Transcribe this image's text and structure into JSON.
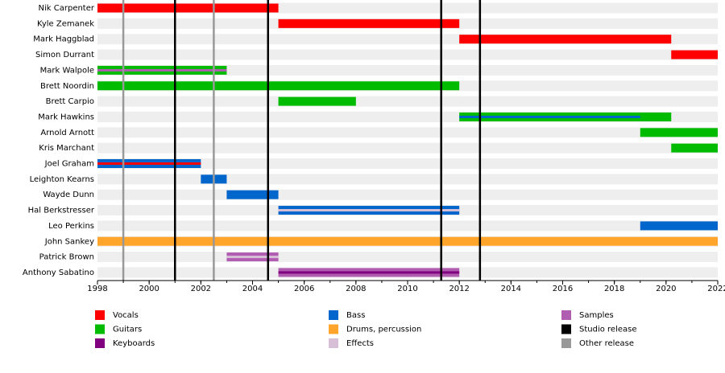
{
  "chart_data": {
    "type": "timeline",
    "rows": [
      {
        "name": "Nik Carpenter",
        "bars": [
          {
            "role": "Vocals",
            "start": 1998,
            "end": 2005
          }
        ],
        "stripes": []
      },
      {
        "name": "Kyle Zemanek",
        "bars": [
          {
            "role": "Vocals",
            "start": 2005,
            "end": 2012
          }
        ],
        "stripes": []
      },
      {
        "name": "Mark Haggblad",
        "bars": [
          {
            "role": "Vocals",
            "start": 2012,
            "end": 2020.2
          }
        ],
        "stripes": []
      },
      {
        "name": "Simon Durrant",
        "bars": [
          {
            "role": "Vocals",
            "start": 2020.2,
            "end": 2022
          }
        ],
        "stripes": []
      },
      {
        "name": "Mark Walpole",
        "bars": [
          {
            "role": "Guitars",
            "start": 1998,
            "end": 2003
          }
        ],
        "stripes": [
          {
            "role": "Samples",
            "start": 1998,
            "end": 2003
          }
        ]
      },
      {
        "name": "Brett Noordin",
        "bars": [
          {
            "role": "Guitars",
            "start": 1998,
            "end": 2012
          }
        ],
        "stripes": []
      },
      {
        "name": "Brett Carpio",
        "bars": [
          {
            "role": "Guitars",
            "start": 2005,
            "end": 2008
          }
        ],
        "stripes": []
      },
      {
        "name": "Mark Hawkins",
        "bars": [
          {
            "role": "Guitars",
            "start": 2012,
            "end": 2020.2
          }
        ],
        "stripes": [
          {
            "role": "Bass",
            "start": 2012,
            "end": 2019
          }
        ]
      },
      {
        "name": "Arnold Arnott",
        "bars": [
          {
            "role": "Guitars",
            "start": 2019,
            "end": 2022
          }
        ],
        "stripes": []
      },
      {
        "name": "Kris Marchant",
        "bars": [
          {
            "role": "Guitars",
            "start": 2020.2,
            "end": 2022
          }
        ],
        "stripes": []
      },
      {
        "name": "Joel Graham",
        "bars": [
          {
            "role": "Bass",
            "start": 1998,
            "end": 2002
          }
        ],
        "stripes": [
          {
            "role": "Vocals",
            "start": 1998,
            "end": 2002
          }
        ]
      },
      {
        "name": "Leighton Kearns",
        "bars": [
          {
            "role": "Bass",
            "start": 2002,
            "end": 2003
          }
        ],
        "stripes": []
      },
      {
        "name": "Wayde Dunn",
        "bars": [
          {
            "role": "Bass",
            "start": 2003,
            "end": 2005
          }
        ],
        "stripes": []
      },
      {
        "name": "Hal Berkstresser",
        "bars": [
          {
            "role": "Bass",
            "start": 2005,
            "end": 2012
          }
        ],
        "stripes": [
          {
            "role": "Effects",
            "start": 2005,
            "end": 2012
          }
        ]
      },
      {
        "name": "Leo Perkins",
        "bars": [
          {
            "role": "Bass",
            "start": 2019,
            "end": 2022
          }
        ],
        "stripes": []
      },
      {
        "name": "John Sankey",
        "bars": [
          {
            "role": "Drums, percussion",
            "start": 1998,
            "end": 2022
          }
        ],
        "stripes": []
      },
      {
        "name": "Patrick Brown",
        "bars": [
          {
            "role": "Samples",
            "start": 2003,
            "end": 2005
          }
        ],
        "stripes": [
          {
            "role": "Effects",
            "start": 2003,
            "end": 2005
          }
        ]
      },
      {
        "name": "Anthony Sabatino",
        "bars": [
          {
            "role": "Samples",
            "start": 2005,
            "end": 2012
          }
        ],
        "stripes": [
          {
            "role": "Keyboards",
            "start": 2005,
            "end": 2012
          }
        ]
      }
    ],
    "legend": [
      {
        "name": "Vocals",
        "color": "#ff0000"
      },
      {
        "name": "Guitars",
        "color": "#00bb00"
      },
      {
        "name": "Keyboards",
        "color": "#800080"
      },
      {
        "name": "Bass",
        "color": "#0066cc"
      },
      {
        "name": "Drums, percussion",
        "color": "#ffa52c"
      },
      {
        "name": "Effects",
        "color": "#d8bfd8"
      },
      {
        "name": "Samples",
        "color": "#b05cb0"
      },
      {
        "name": "Studio release",
        "color": "#000000",
        "lines": [
          2001,
          2004.6,
          2011.3,
          2012.8
        ]
      },
      {
        "name": "Other release",
        "color": "#999999",
        "lines": [
          1999,
          2002.5
        ]
      }
    ],
    "xlim": [
      1998,
      2022
    ],
    "xticks": [
      1998,
      2000,
      2002,
      2004,
      2006,
      2008,
      2010,
      2012,
      2014,
      2016,
      2018,
      2020,
      2022
    ]
  }
}
